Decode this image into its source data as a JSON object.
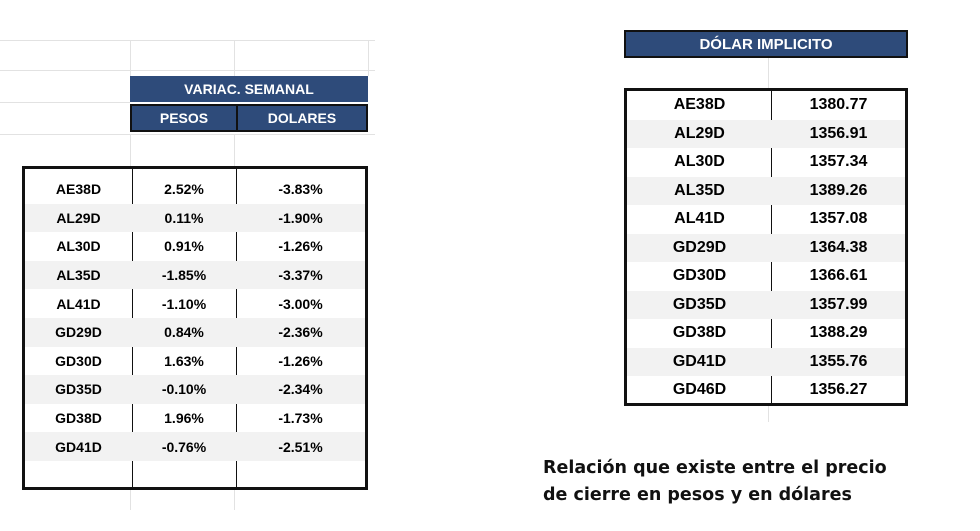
{
  "variacion": {
    "title": "VARIAC. SEMANAL",
    "col_pesos": "PESOS",
    "col_dolares": "DOLARES",
    "rows": [
      {
        "bono": "AE38D",
        "pesos": "2.52%",
        "dolares": "-3.83%"
      },
      {
        "bono": "AL29D",
        "pesos": "0.11%",
        "dolares": "-1.90%"
      },
      {
        "bono": "AL30D",
        "pesos": "0.91%",
        "dolares": "-1.26%"
      },
      {
        "bono": "AL35D",
        "pesos": "-1.85%",
        "dolares": "-3.37%"
      },
      {
        "bono": "AL41D",
        "pesos": "-1.10%",
        "dolares": "-3.00%"
      },
      {
        "bono": "GD29D",
        "pesos": "0.84%",
        "dolares": "-2.36%"
      },
      {
        "bono": "GD30D",
        "pesos": "1.63%",
        "dolares": "-1.26%"
      },
      {
        "bono": "GD35D",
        "pesos": "-0.10%",
        "dolares": "-2.34%"
      },
      {
        "bono": "GD38D",
        "pesos": "1.96%",
        "dolares": "-1.73%"
      },
      {
        "bono": "GD41D",
        "pesos": "-0.76%",
        "dolares": "-2.51%"
      },
      {
        "bono": "",
        "pesos": "",
        "dolares": ""
      }
    ]
  },
  "dolar_implicito": {
    "title": "DÓLAR IMPLICITO",
    "rows": [
      {
        "bono": "AE38D",
        "valor": "1380.77"
      },
      {
        "bono": "AL29D",
        "valor": "1356.91"
      },
      {
        "bono": "AL30D",
        "valor": "1357.34"
      },
      {
        "bono": "AL35D",
        "valor": "1389.26"
      },
      {
        "bono": "AL41D",
        "valor": "1357.08"
      },
      {
        "bono": "GD29D",
        "valor": "1364.38"
      },
      {
        "bono": "GD30D",
        "valor": "1366.61"
      },
      {
        "bono": "GD35D",
        "valor": "1357.99"
      },
      {
        "bono": "GD38D",
        "valor": "1388.29"
      },
      {
        "bono": "GD41D",
        "valor": "1355.76"
      },
      {
        "bono": "GD46D",
        "valor": "1356.27"
      }
    ]
  },
  "caption": {
    "line1": "Relación que existe entre el precio",
    "line2": "de cierre en pesos y en dólares"
  },
  "colors": {
    "header_bg": "#2e4b7a",
    "row_shade": "#f2f2f2"
  }
}
